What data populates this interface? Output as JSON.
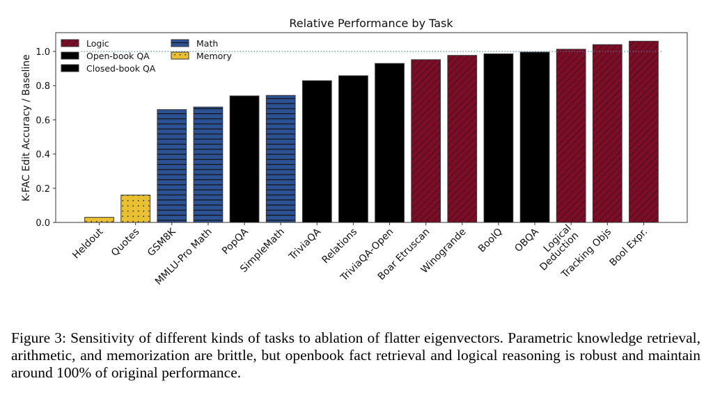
{
  "chart_data": {
    "type": "bar",
    "title": "Relative Performance by Task",
    "ylabel": "K-FAC Edit Accuracy / Baseline",
    "xlabel": "",
    "ylim": [
      0,
      1.11
    ],
    "yticks": [
      "0.0",
      "0.2",
      "0.4",
      "0.6",
      "0.8",
      "1.0"
    ],
    "reference_line": 1.0,
    "grid": false,
    "legend_position": "top-left",
    "categories": [
      "Heldout",
      "Quotes",
      "GSM8K",
      "MMLU-Pro Math",
      "PopQA",
      "SimpleMath",
      "TriviaQA",
      "Relations",
      "TriviaQA-Open",
      "Boar Etruscan",
      "Winogrande",
      "BoolQ",
      "OBQA",
      "Logical\nDeduction",
      "Tracking Objs",
      "Bool Expr."
    ],
    "values": [
      0.03,
      0.16,
      0.66,
      0.675,
      0.74,
      0.743,
      0.829,
      0.858,
      0.93,
      0.952,
      0.977,
      0.986,
      0.996,
      1.013,
      1.04,
      1.06
    ],
    "groups": [
      "Memory",
      "Memory",
      "Math",
      "Math",
      "Closed-book QA",
      "Math",
      "Closed-book QA",
      "Closed-book QA",
      "Open-book QA",
      "Logic",
      "Logic",
      "Open-book QA",
      "Open-book QA",
      "Logic",
      "Logic",
      "Logic"
    ],
    "legend": [
      {
        "name": "Logic",
        "color": "#7b0d26",
        "hatch": "diagonal-forward"
      },
      {
        "name": "Open-book QA",
        "color": "#f44b36",
        "hatch": "diagonal-back"
      },
      {
        "name": "Closed-book QA",
        "color": "#1dcfa0",
        "hatch": "cross"
      },
      {
        "name": "Math",
        "color": "#2c5293",
        "hatch": "horizontal"
      },
      {
        "name": "Memory",
        "color": "#e8c032",
        "hatch": "dots"
      }
    ]
  },
  "caption": "Figure 3: Sensitivity of different kinds of tasks to ablation of flatter eigenvectors. Parametric knowledge retrieval, arithmetic, and memorization are brittle, but openbook fact retrieval and logical reasoning is robust and maintain around 100% of original performance."
}
